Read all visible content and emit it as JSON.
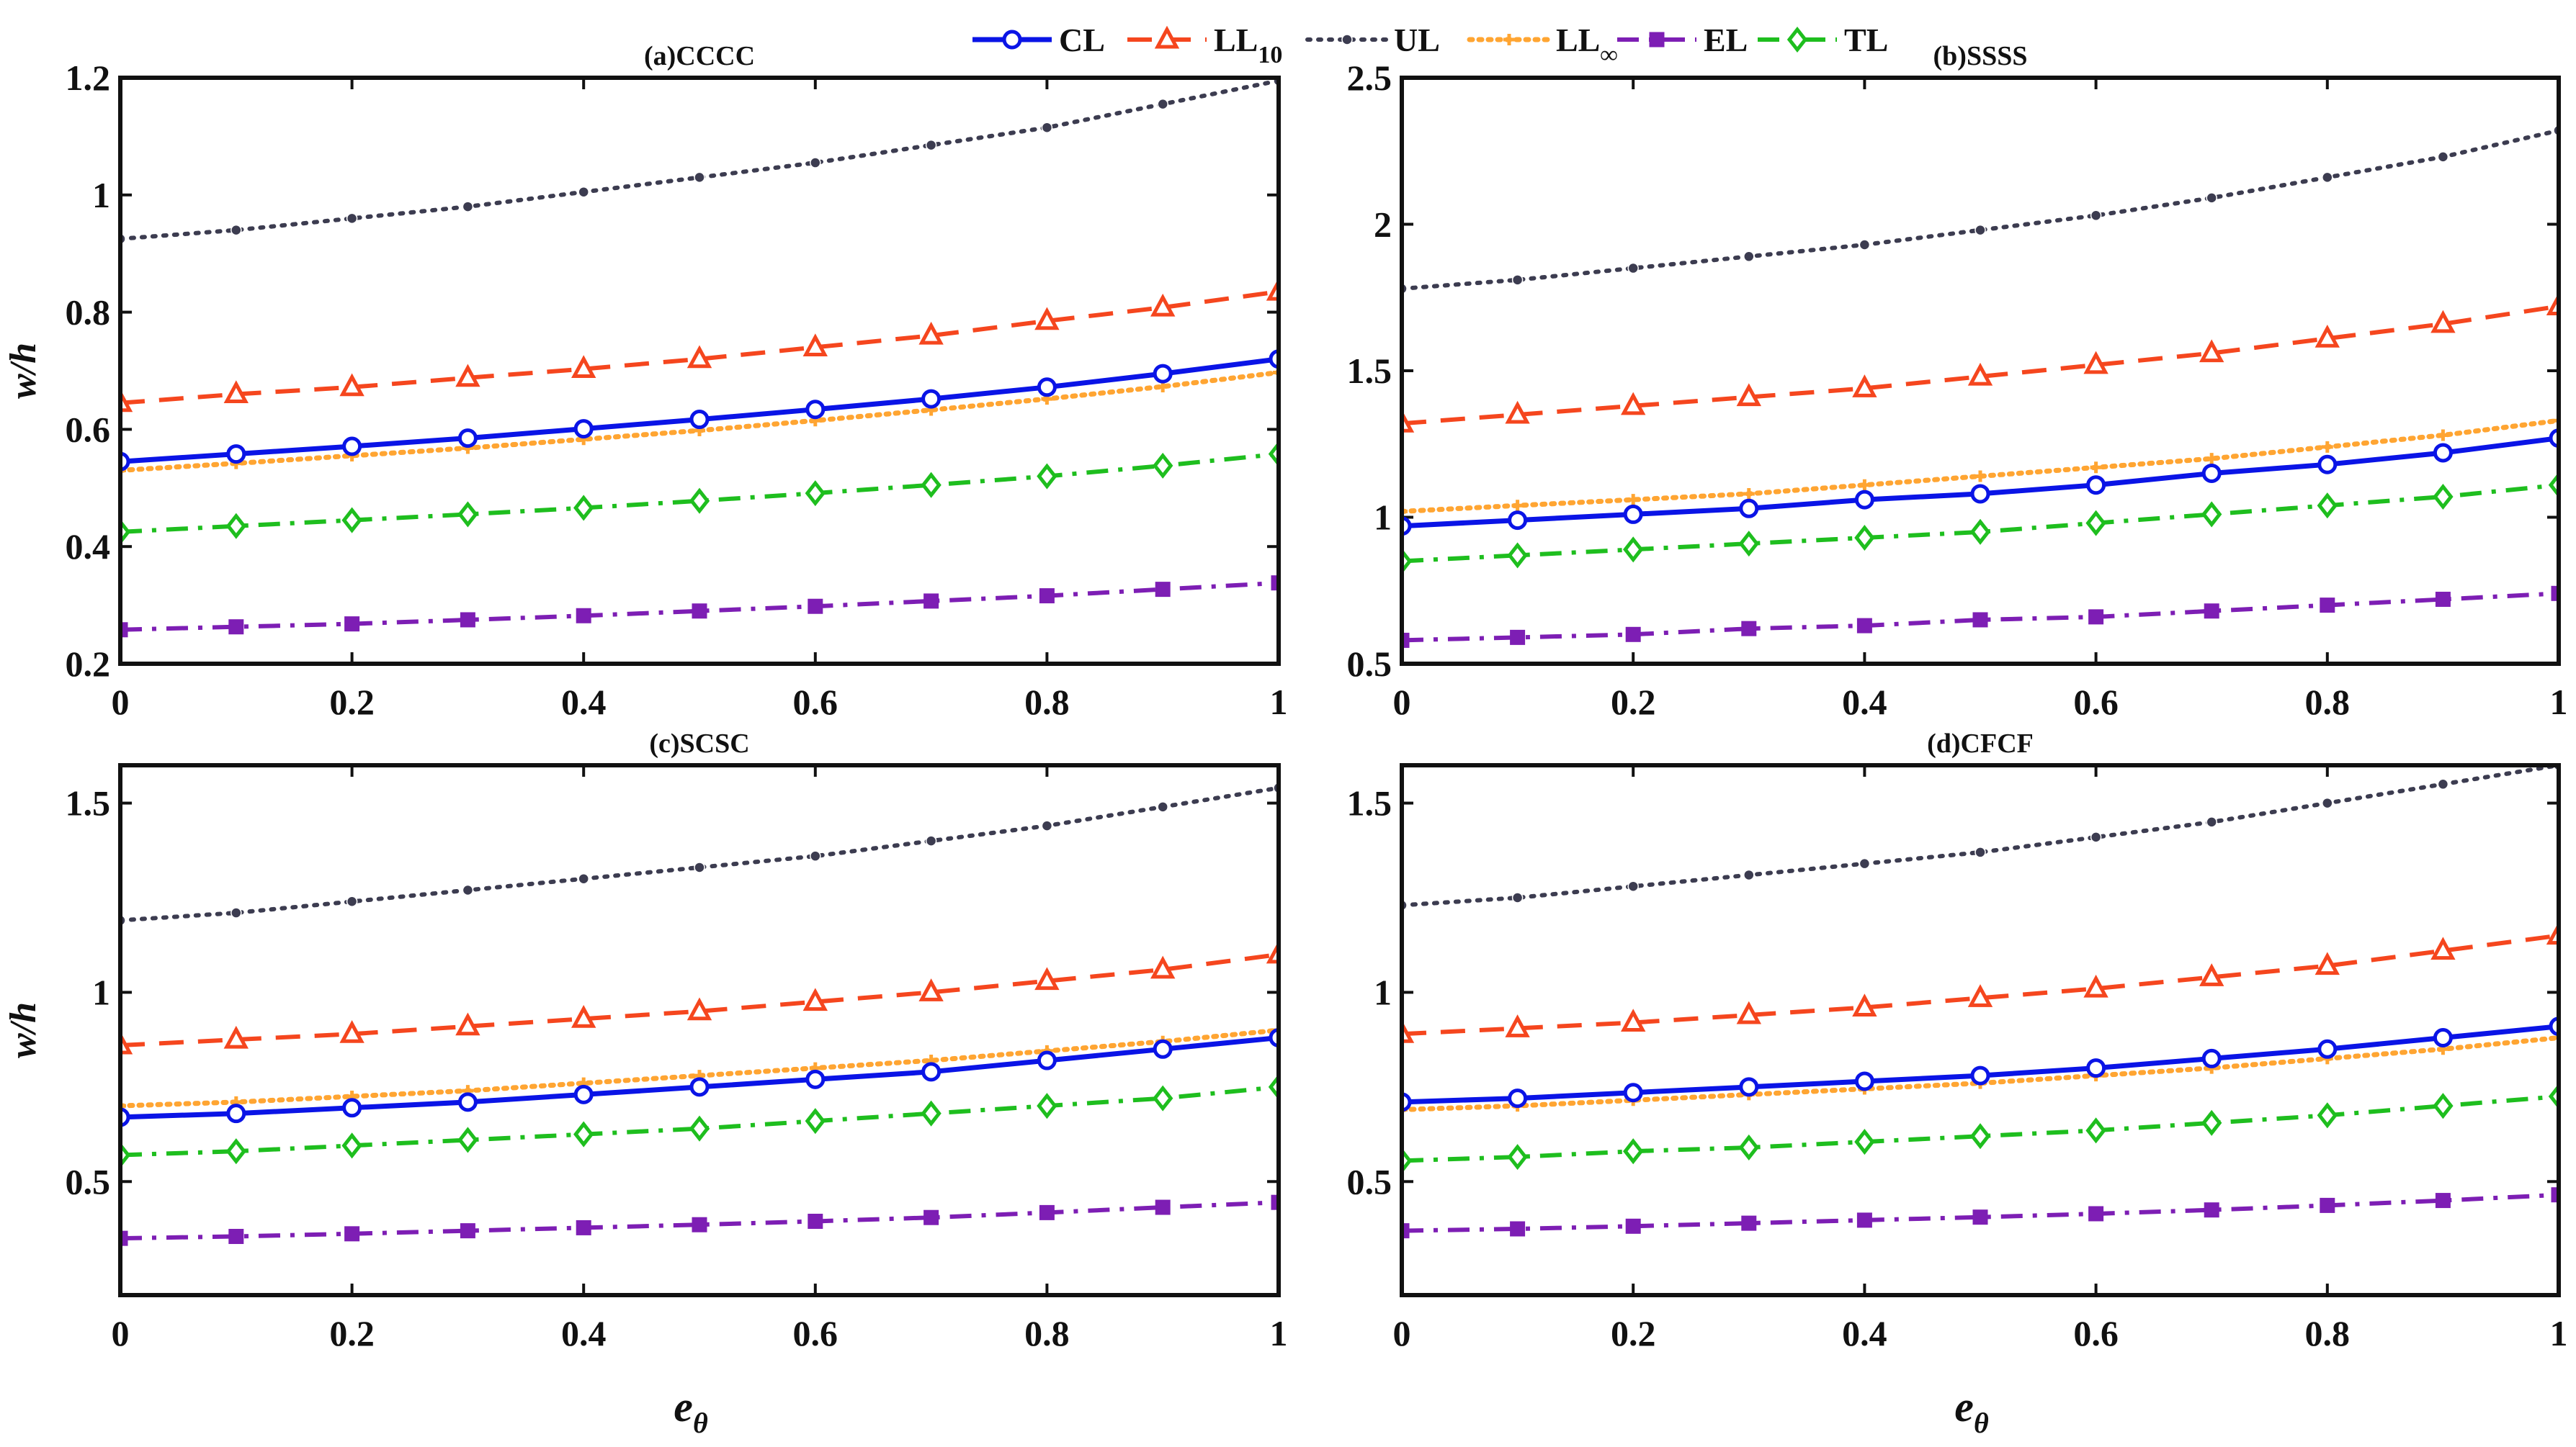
{
  "chart_data": {
    "type": "line",
    "legend": {
      "placement": "top-center",
      "items": [
        {
          "key": "CL",
          "label": "CL"
        },
        {
          "key": "LL10",
          "label": "LL",
          "sub": "10"
        },
        {
          "key": "UL",
          "label": "UL"
        },
        {
          "key": "LLinf",
          "label": "LL",
          "sub": "∞"
        },
        {
          "key": "EL",
          "label": "EL"
        },
        {
          "key": "TL",
          "label": "TL"
        }
      ]
    },
    "series_styles": {
      "CL": {
        "color": "#0a14e6",
        "dash": "",
        "marker": "circle",
        "width": 7
      },
      "LL10": {
        "color": "#f5461e",
        "dash": "34 20",
        "marker": "triangle",
        "width": 6
      },
      "UL": {
        "color": "#3c3c50",
        "dash": "4 11",
        "marker": "dot",
        "width": 6
      },
      "LLinf": {
        "color": "#ffa532",
        "dash": "4 9",
        "marker": "plus",
        "width": 7
      },
      "EL": {
        "color": "#7d1eb4",
        "dash": "30 14 6 14",
        "marker": "square",
        "width": 6
      },
      "TL": {
        "color": "#1ebe1e",
        "dash": "30 14 6 14",
        "marker": "diamond",
        "width": 6
      }
    },
    "x": [
      0,
      0.1,
      0.2,
      0.3,
      0.4,
      0.5,
      0.6,
      0.7,
      0.8,
      0.9,
      1
    ],
    "xlabel": "e",
    "xlabel_sub": "θ",
    "ylabel": "w/h",
    "panels": [
      {
        "title": "(a)CCCC",
        "xlim": [
          0,
          1
        ],
        "ylim": [
          0.2,
          1.2
        ],
        "xticks": [
          0,
          0.2,
          0.4,
          0.6,
          0.8,
          1
        ],
        "xtick_labels": [
          "0",
          "0.2",
          "0.4",
          "0.6",
          "0.8",
          "1"
        ],
        "yticks": [
          0.2,
          0.4,
          0.6,
          0.8,
          1,
          1.2
        ],
        "ytick_labels": [
          "0.2",
          "0.4",
          "0.6",
          "0.8",
          "1",
          "1.2"
        ],
        "series": {
          "UL": [
            0.925,
            0.94,
            0.96,
            0.98,
            1.005,
            1.03,
            1.055,
            1.085,
            1.115,
            1.155,
            1.195
          ],
          "LL10": [
            0.645,
            0.66,
            0.672,
            0.688,
            0.703,
            0.72,
            0.74,
            0.76,
            0.785,
            0.808,
            0.835
          ],
          "CL": [
            0.545,
            0.558,
            0.571,
            0.585,
            0.601,
            0.617,
            0.634,
            0.652,
            0.672,
            0.695,
            0.72
          ],
          "LLinf": [
            0.53,
            0.542,
            0.555,
            0.568,
            0.583,
            0.598,
            0.615,
            0.633,
            0.652,
            0.673,
            0.697
          ],
          "TL": [
            0.425,
            0.435,
            0.445,
            0.455,
            0.466,
            0.478,
            0.491,
            0.505,
            0.52,
            0.538,
            0.558
          ],
          "EL": [
            0.258,
            0.263,
            0.268,
            0.275,
            0.282,
            0.29,
            0.298,
            0.307,
            0.316,
            0.327,
            0.338
          ]
        }
      },
      {
        "title": "(b)SSSS",
        "xlim": [
          0,
          1
        ],
        "ylim": [
          0.5,
          2.5
        ],
        "xticks": [
          0,
          0.2,
          0.4,
          0.6,
          0.8,
          1
        ],
        "xtick_labels": [
          "0",
          "0.2",
          "0.4",
          "0.6",
          "0.8",
          "1"
        ],
        "yticks": [
          0.5,
          1,
          1.5,
          2,
          2.5
        ],
        "ytick_labels": [
          "0.5",
          "1",
          "1.5",
          "2",
          "2.5"
        ],
        "series": {
          "UL": [
            1.78,
            1.81,
            1.85,
            1.89,
            1.93,
            1.98,
            2.03,
            2.09,
            2.16,
            2.23,
            2.32
          ],
          "LL10": [
            1.32,
            1.35,
            1.38,
            1.41,
            1.44,
            1.48,
            1.52,
            1.56,
            1.61,
            1.66,
            1.72
          ],
          "LLinf": [
            1.02,
            1.04,
            1.06,
            1.08,
            1.11,
            1.14,
            1.17,
            1.2,
            1.24,
            1.28,
            1.33
          ],
          "CL": [
            0.97,
            0.99,
            1.01,
            1.03,
            1.06,
            1.08,
            1.11,
            1.15,
            1.18,
            1.22,
            1.27
          ],
          "TL": [
            0.85,
            0.87,
            0.89,
            0.91,
            0.93,
            0.95,
            0.98,
            1.01,
            1.04,
            1.07,
            1.11
          ],
          "EL": [
            0.58,
            0.59,
            0.6,
            0.62,
            0.63,
            0.65,
            0.66,
            0.68,
            0.7,
            0.72,
            0.74
          ]
        }
      },
      {
        "title": "(c)SCSC",
        "xlim": [
          0,
          1
        ],
        "ylim": [
          0.2,
          1.6
        ],
        "xticks": [
          0,
          0.2,
          0.4,
          0.6,
          0.8,
          1
        ],
        "xtick_labels": [
          "0",
          "0.2",
          "0.4",
          "0.6",
          "0.8",
          "1"
        ],
        "yticks": [
          0.5,
          1,
          1.5
        ],
        "ytick_labels": [
          "0.5",
          "1",
          "1.5"
        ],
        "series": {
          "UL": [
            1.19,
            1.21,
            1.24,
            1.27,
            1.3,
            1.33,
            1.36,
            1.4,
            1.44,
            1.49,
            1.54
          ],
          "LL10": [
            0.86,
            0.875,
            0.89,
            0.91,
            0.93,
            0.95,
            0.975,
            1.0,
            1.03,
            1.06,
            1.1
          ],
          "LLinf": [
            0.7,
            0.71,
            0.725,
            0.74,
            0.76,
            0.78,
            0.8,
            0.82,
            0.845,
            0.87,
            0.9
          ],
          "CL": [
            0.67,
            0.68,
            0.695,
            0.71,
            0.73,
            0.75,
            0.77,
            0.79,
            0.82,
            0.85,
            0.88
          ],
          "TL": [
            0.57,
            0.58,
            0.595,
            0.61,
            0.625,
            0.64,
            0.66,
            0.68,
            0.7,
            0.72,
            0.75
          ],
          "EL": [
            0.35,
            0.355,
            0.362,
            0.37,
            0.378,
            0.386,
            0.395,
            0.405,
            0.418,
            0.432,
            0.445
          ]
        }
      },
      {
        "title": "(d)CFCF",
        "xlim": [
          0,
          1
        ],
        "ylim": [
          0.2,
          1.6
        ],
        "xticks": [
          0,
          0.2,
          0.4,
          0.6,
          0.8,
          1
        ],
        "xtick_labels": [
          "0",
          "0.2",
          "0.4",
          "0.6",
          "0.8",
          "1"
        ],
        "yticks": [
          0.5,
          1,
          1.5
        ],
        "ytick_labels": [
          "0.5",
          "1",
          "1.5"
        ],
        "series": {
          "UL": [
            1.23,
            1.25,
            1.28,
            1.31,
            1.34,
            1.37,
            1.41,
            1.45,
            1.5,
            1.55,
            1.6
          ],
          "LL10": [
            0.89,
            0.905,
            0.92,
            0.94,
            0.96,
            0.985,
            1.01,
            1.04,
            1.07,
            1.11,
            1.15
          ],
          "CL": [
            0.71,
            0.72,
            0.735,
            0.75,
            0.765,
            0.78,
            0.8,
            0.825,
            0.85,
            0.88,
            0.91
          ],
          "LLinf": [
            0.69,
            0.7,
            0.715,
            0.73,
            0.745,
            0.76,
            0.78,
            0.8,
            0.825,
            0.85,
            0.88
          ],
          "TL": [
            0.555,
            0.565,
            0.58,
            0.59,
            0.605,
            0.62,
            0.635,
            0.655,
            0.675,
            0.7,
            0.725
          ],
          "EL": [
            0.37,
            0.375,
            0.382,
            0.39,
            0.398,
            0.406,
            0.415,
            0.425,
            0.437,
            0.45,
            0.465
          ]
        }
      }
    ]
  }
}
